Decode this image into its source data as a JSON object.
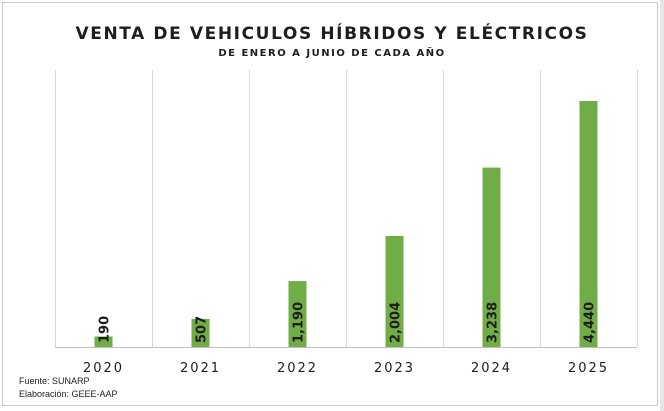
{
  "chart_data": {
    "type": "bar",
    "title": "VENTA DE VEHICULOS HÍBRIDOS Y ELÉCTRICOS",
    "subtitle": "DE ENERO A JUNIO DE CADA AÑO",
    "categories": [
      "2020",
      "2021",
      "2022",
      "2023",
      "2024",
      "2025"
    ],
    "values": [
      190,
      507,
      1190,
      2004,
      3238,
      4440
    ],
    "value_labels": [
      "190",
      "507",
      "1,190",
      "2,004",
      "3,238",
      "4,440"
    ],
    "ylim": [
      0,
      5000
    ],
    "grid": "vertical category separators",
    "bar_color": "#70ad47"
  },
  "footer": {
    "source": "Fuente: SUNARP",
    "elaboration": "Elaboración: GEEE-AAP"
  }
}
